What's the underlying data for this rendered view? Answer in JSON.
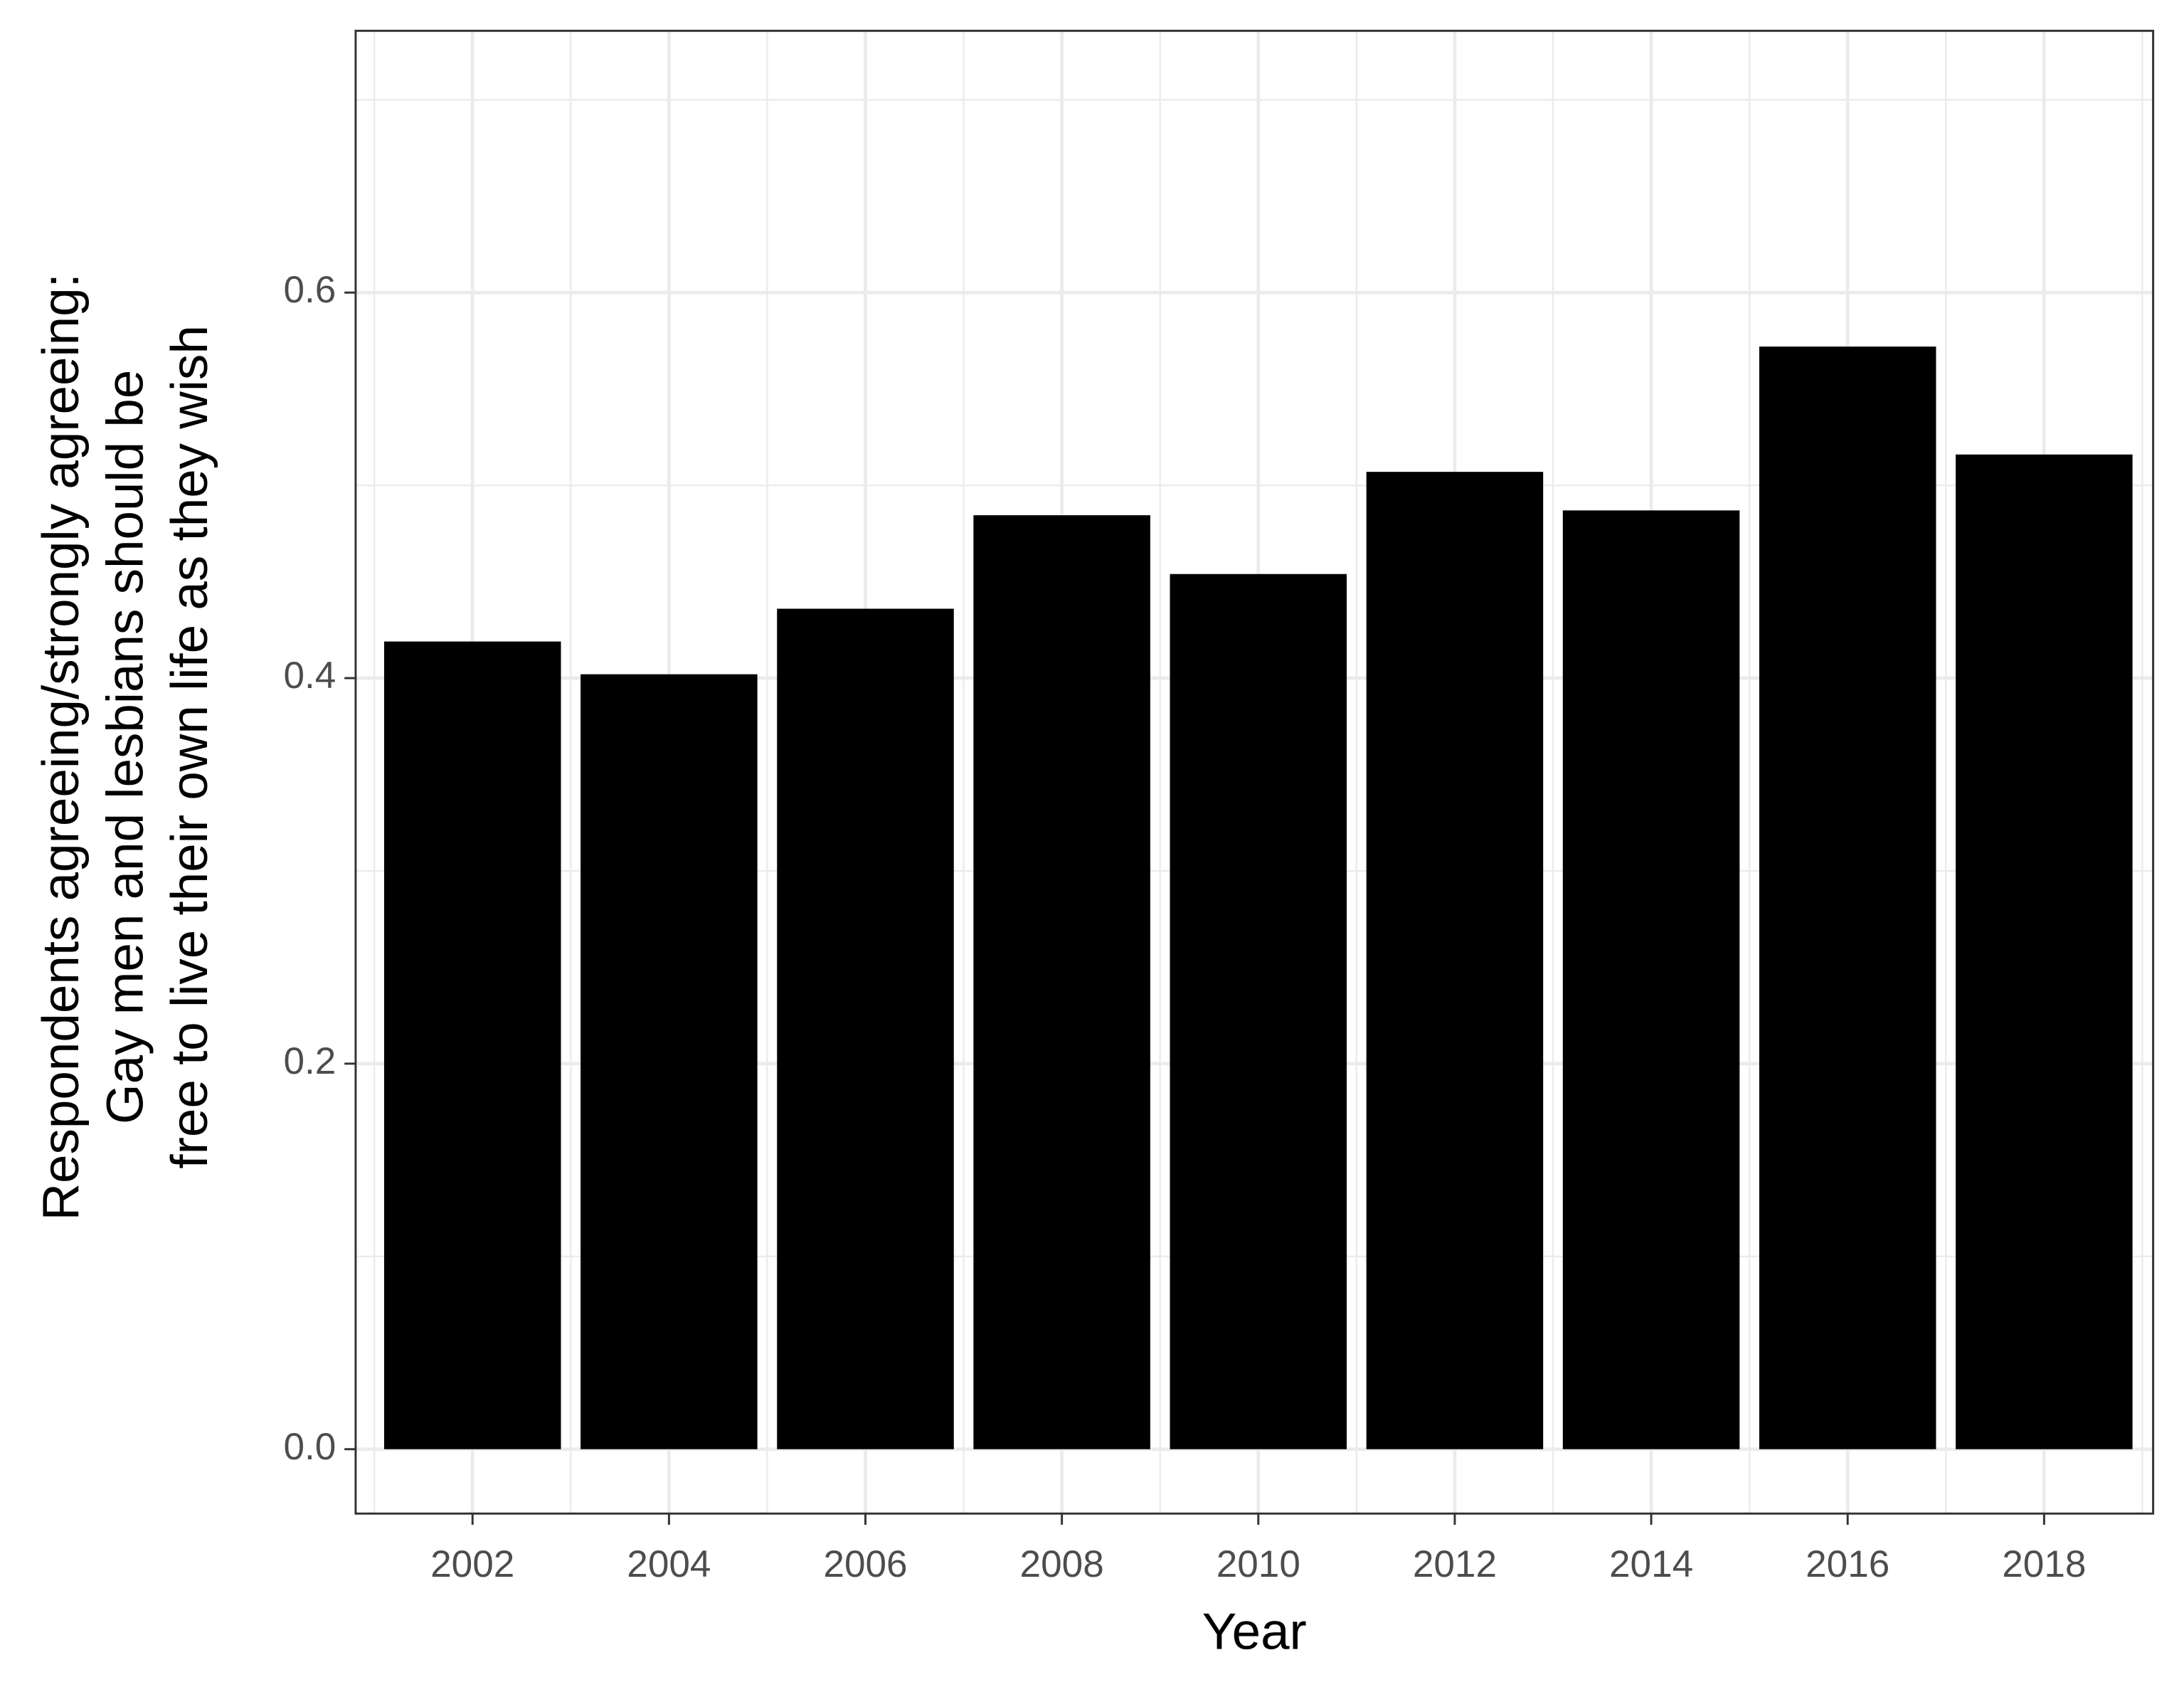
{
  "chart_data": {
    "type": "bar",
    "xlabel": "Year",
    "ylabel": [
      "Respondents agreeing/strongly agreeing:",
      "Gay men and lesbians should be",
      "free to live their own life as they wish"
    ],
    "x": [
      2002,
      2004,
      2006,
      2008,
      2010,
      2012,
      2014,
      2016,
      2018
    ],
    "values": [
      0.419,
      0.402,
      0.436,
      0.4845,
      0.454,
      0.507,
      0.487,
      0.572,
      0.516
    ],
    "color": "#000000",
    "bar_width": 1.8,
    "xlim": [
      2000.81,
      2019.11
    ],
    "xticks": [
      2002,
      2004,
      2006,
      2008,
      2010,
      2012,
      2014,
      2016,
      2018
    ],
    "ylim": [
      -0.0334,
      0.7358
    ],
    "yticks": [
      {
        "value": 0,
        "label": "0.0"
      },
      0.2,
      0.4,
      0.6
    ],
    "grid": true
  }
}
